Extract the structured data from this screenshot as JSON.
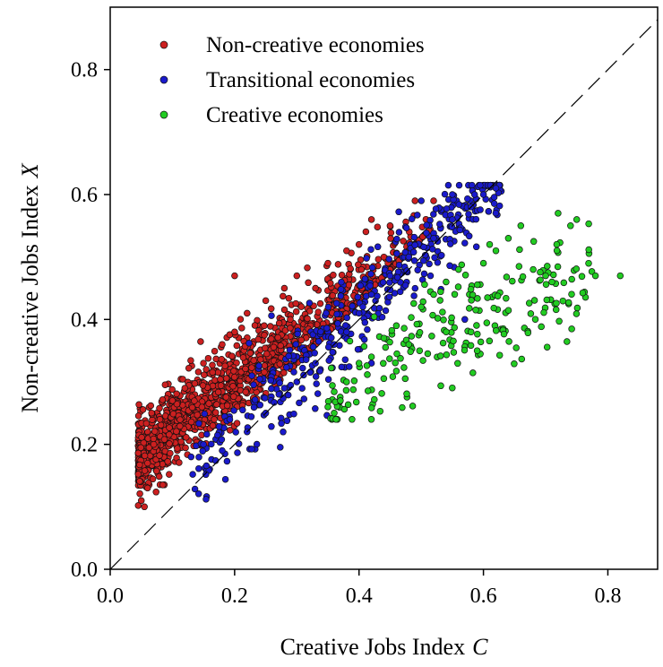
{
  "chart_data": {
    "type": "scatter",
    "xlabel": "Creative Jobs Index",
    "xlabel_var": "C",
    "ylabel": "Non-creative Jobs Index",
    "ylabel_var": "X",
    "xlim": [
      0.0,
      0.88
    ],
    "ylim": [
      0.0,
      0.9
    ],
    "xticks": [
      "0.0",
      "0.2",
      "0.4",
      "0.6",
      "0.8"
    ],
    "yticks": [
      "0.0",
      "0.2",
      "0.4",
      "0.6",
      "0.8"
    ],
    "grid": false,
    "legend_position": "top-left",
    "reference_line": {
      "style": "dashed",
      "from": [
        0,
        0
      ],
      "to": [
        0.88,
        0.88
      ]
    },
    "series": [
      {
        "name": "Non-creative economies",
        "color": "#cc2020",
        "cluster": {
          "x_range": [
            0.04,
            0.52
          ],
          "count": 1500
        },
        "points": [
          [
            0.05,
            0.11
          ],
          [
            0.055,
            0.1
          ],
          [
            0.06,
            0.13
          ],
          [
            0.06,
            0.17
          ],
          [
            0.07,
            0.2
          ],
          [
            0.08,
            0.24
          ],
          [
            0.1,
            0.27
          ],
          [
            0.12,
            0.29
          ],
          [
            0.15,
            0.33
          ],
          [
            0.18,
            0.36
          ],
          [
            0.2,
            0.38
          ],
          [
            0.22,
            0.41
          ],
          [
            0.25,
            0.43
          ],
          [
            0.28,
            0.45
          ],
          [
            0.3,
            0.47
          ],
          [
            0.35,
            0.49
          ],
          [
            0.4,
            0.52
          ],
          [
            0.42,
            0.56
          ],
          [
            0.45,
            0.55
          ],
          [
            0.49,
            0.59
          ],
          [
            0.52,
            0.59
          ],
          [
            0.44,
            0.5
          ],
          [
            0.38,
            0.51
          ],
          [
            0.33,
            0.45
          ],
          [
            0.2,
            0.47
          ]
        ]
      },
      {
        "name": "Transitional economies",
        "color": "#1a1acc",
        "cluster": {
          "x_range": [
            0.12,
            0.63
          ],
          "count": 420
        },
        "points": [
          [
            0.13,
            0.18
          ],
          [
            0.15,
            0.2
          ],
          [
            0.18,
            0.19
          ],
          [
            0.22,
            0.22
          ],
          [
            0.25,
            0.25
          ],
          [
            0.28,
            0.29
          ],
          [
            0.3,
            0.3
          ],
          [
            0.33,
            0.33
          ],
          [
            0.36,
            0.36
          ],
          [
            0.38,
            0.38
          ],
          [
            0.4,
            0.41
          ],
          [
            0.42,
            0.44
          ],
          [
            0.45,
            0.47
          ],
          [
            0.48,
            0.5
          ],
          [
            0.52,
            0.53
          ],
          [
            0.55,
            0.56
          ],
          [
            0.58,
            0.58
          ],
          [
            0.6,
            0.6
          ],
          [
            0.62,
            0.61
          ],
          [
            0.55,
            0.6
          ],
          [
            0.5,
            0.59
          ],
          [
            0.57,
            0.4
          ],
          [
            0.42,
            0.33
          ]
        ]
      },
      {
        "name": "Creative economies",
        "color": "#22cc22",
        "cluster": {
          "x_range": [
            0.34,
            0.82
          ],
          "count": 210
        },
        "points": [
          [
            0.35,
            0.26
          ],
          [
            0.36,
            0.25
          ],
          [
            0.37,
            0.27
          ],
          [
            0.38,
            0.3
          ],
          [
            0.4,
            0.33
          ],
          [
            0.42,
            0.34
          ],
          [
            0.44,
            0.37
          ],
          [
            0.46,
            0.39
          ],
          [
            0.48,
            0.36
          ],
          [
            0.5,
            0.42
          ],
          [
            0.52,
            0.44
          ],
          [
            0.54,
            0.46
          ],
          [
            0.56,
            0.48
          ],
          [
            0.58,
            0.38
          ],
          [
            0.59,
            0.35
          ],
          [
            0.6,
            0.49
          ],
          [
            0.62,
            0.51
          ],
          [
            0.64,
            0.53
          ],
          [
            0.66,
            0.55
          ],
          [
            0.68,
            0.48
          ],
          [
            0.7,
            0.47
          ],
          [
            0.72,
            0.57
          ],
          [
            0.74,
            0.55
          ],
          [
            0.75,
            0.56
          ],
          [
            0.78,
            0.47
          ],
          [
            0.82,
            0.47
          ],
          [
            0.71,
            0.46
          ],
          [
            0.61,
            0.52
          ]
        ]
      }
    ]
  }
}
